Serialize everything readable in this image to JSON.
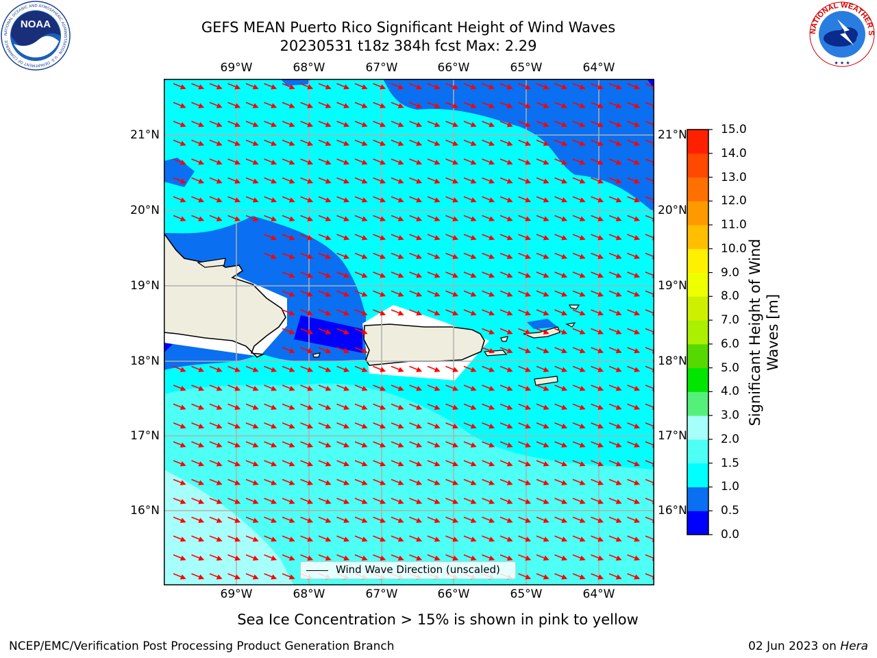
{
  "header": {
    "title_line1": "GEFS MEAN Puerto Rico Significant Height of Wind Waves",
    "title_line2": "20230531 t18z 384h fcst   Max: 2.29"
  },
  "logos": {
    "noaa_left": {
      "text": "NOAA",
      "ring_text": "NATIONAL OCEANIC AND ATMOSPHERIC ADMINISTRATION · U.S. DEPARTMENT OF COMMERCE"
    },
    "nws_right": {
      "ring_text": "NATIONAL WEATHER SERVICE"
    }
  },
  "map": {
    "longitude_labels": [
      "69°W",
      "68°W",
      "67°W",
      "66°W",
      "65°W",
      "64°W"
    ],
    "latitude_labels": [
      "21°N",
      "20°N",
      "19°N",
      "18°N",
      "17°N",
      "16°N"
    ],
    "latitude_labels_right": [
      "21°N",
      "20°N",
      "19°N",
      "18°N",
      "17°N",
      "16°N"
    ],
    "legend_label": "Wind Wave Direction (unscaled)",
    "arrow_color": "#ff0000",
    "land_color": "#efedde",
    "gridline_color": "#b0b0b0"
  },
  "colorbar": {
    "title": "Significant Height of Wind Waves [m]",
    "title_line1": "Significant Height of Wind",
    "title_line2": "Waves [m]",
    "tick_labels": [
      "0.0",
      "0.5",
      "1.0",
      "1.5",
      "2.0",
      "3.0",
      "4.0",
      "5.0",
      "6.0",
      "7.0",
      "8.0",
      "9.0",
      "10.0",
      "11.0",
      "12.0",
      "13.0",
      "14.0",
      "15.0"
    ],
    "bins": [
      {
        "from": 0.0,
        "to": 0.5,
        "color": "#0000ff"
      },
      {
        "from": 0.5,
        "to": 1.0,
        "color": "#0a6ff0"
      },
      {
        "from": 1.0,
        "to": 1.5,
        "color": "#00ffff"
      },
      {
        "from": 1.5,
        "to": 2.0,
        "color": "#4dfff4"
      },
      {
        "from": 2.0,
        "to": 3.0,
        "color": "#a6fffa"
      },
      {
        "from": 3.0,
        "to": 4.0,
        "color": "#55f07a"
      },
      {
        "from": 4.0,
        "to": 5.0,
        "color": "#00e600"
      },
      {
        "from": 5.0,
        "to": 6.0,
        "color": "#55d900"
      },
      {
        "from": 6.0,
        "to": 7.0,
        "color": "#aaf000"
      },
      {
        "from": 7.0,
        "to": 8.0,
        "color": "#ccf000"
      },
      {
        "from": 8.0,
        "to": 9.0,
        "color": "#eeff00"
      },
      {
        "from": 9.0,
        "to": 10.0,
        "color": "#ffef00"
      },
      {
        "from": 10.0,
        "to": 11.0,
        "color": "#ffbe00"
      },
      {
        "from": 11.0,
        "to": 12.0,
        "color": "#ff9900"
      },
      {
        "from": 12.0,
        "to": 13.0,
        "color": "#ff7000"
      },
      {
        "from": 13.0,
        "to": 14.0,
        "color": "#ff4800"
      },
      {
        "from": 14.0,
        "to": 15.0,
        "color": "#ff2000"
      }
    ]
  },
  "note": "Sea Ice Concentration > 15% is shown in pink to yellow",
  "footer": {
    "left": "NCEP/EMC/Verification Post Processing Product Generation Branch",
    "right_prefix": "02 Jun 2023 on ",
    "right_host": "Hera"
  }
}
